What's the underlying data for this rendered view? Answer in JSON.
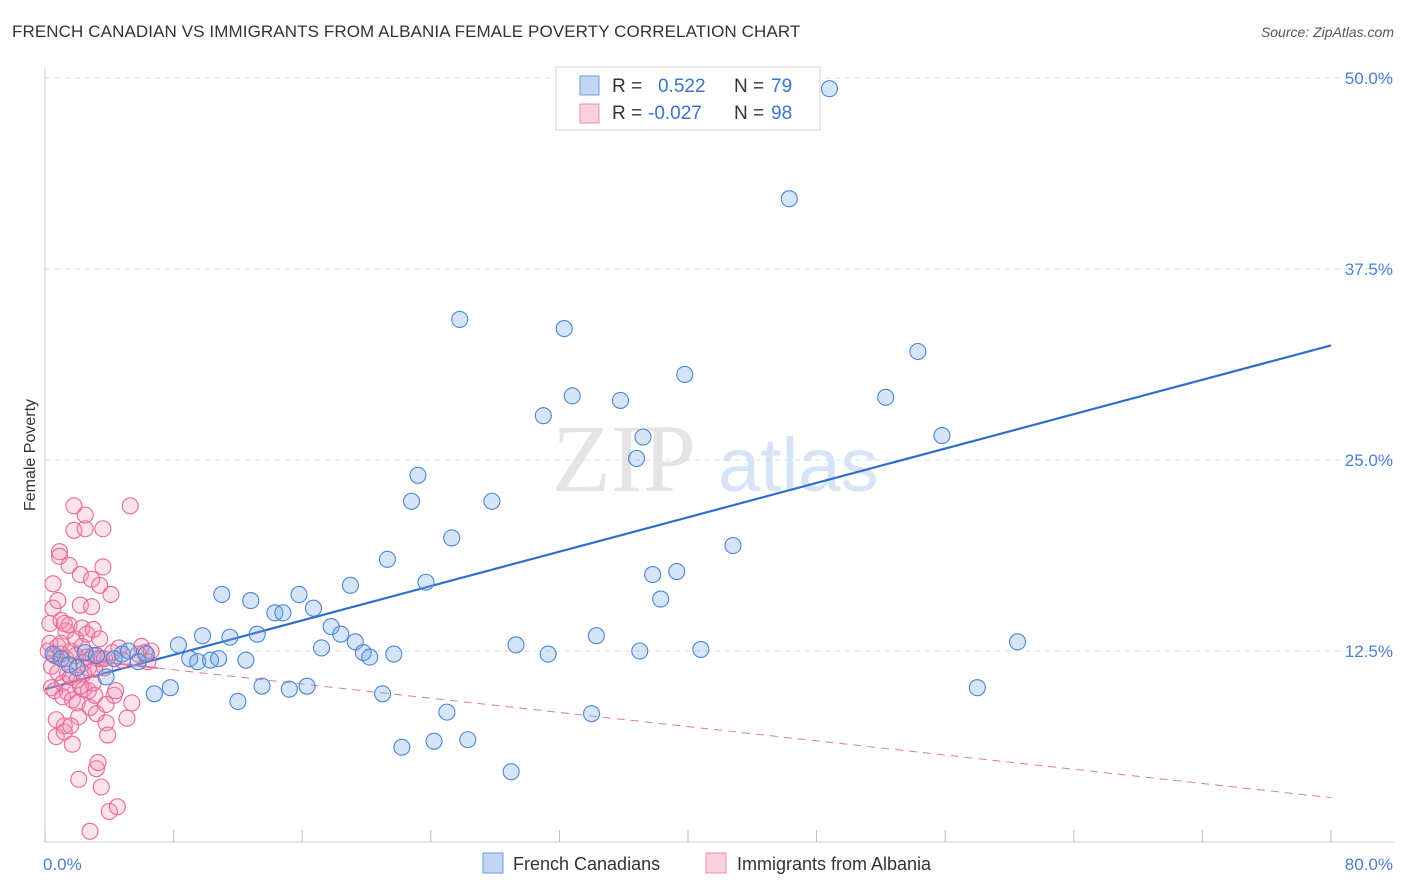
{
  "title": "FRENCH CANADIAN VS IMMIGRANTS FROM ALBANIA FEMALE POVERTY CORRELATION CHART",
  "source": "Source: ZipAtlas.com",
  "watermark": {
    "zip": "ZIP",
    "atlas": "atlas"
  },
  "colors": {
    "blue": "#4a87d6",
    "blue_fill": "rgba(120,165,230,0.30)",
    "blue_line": "#2f6fcc",
    "pink": "#e86a97",
    "pink_fill": "rgba(240,140,175,0.25)",
    "pink_line": "#e07aa0",
    "grid": "#dddddd",
    "tick": "#4a7fd4"
  },
  "chart_data": {
    "type": "scatter",
    "title": "FRENCH CANADIAN VS IMMIGRANTS FROM ALBANIA FEMALE POVERTY CORRELATION CHART",
    "xlabel": "",
    "ylabel": "Female Poverty",
    "xlim": [
      0,
      80
    ],
    "ylim": [
      0,
      50
    ],
    "y_ticks": [
      12.5,
      25.0,
      37.5,
      50.0
    ],
    "y_tick_labels": [
      "12.5%",
      "25.0%",
      "37.5%",
      "50.0%"
    ],
    "x_tick_labels": [
      "0.0%",
      "80.0%"
    ],
    "legend": {
      "r_label": "R =",
      "n_label": "N =",
      "entries": [
        {
          "r": "0.522",
          "n": "79"
        },
        {
          "r": "-0.027",
          "n": "98"
        }
      ]
    },
    "series": [
      {
        "name": "French Canadians",
        "trend": {
          "x": [
            0,
            80
          ],
          "y": [
            10.0,
            32.5
          ]
        },
        "points": [
          [
            0.5,
            12.3
          ],
          [
            1.0,
            12.0
          ],
          [
            1.5,
            11.6
          ],
          [
            2.0,
            11.4
          ],
          [
            2.5,
            12.4
          ],
          [
            3.2,
            12.2
          ],
          [
            3.8,
            10.8
          ],
          [
            4.3,
            12.0
          ],
          [
            4.8,
            12.3
          ],
          [
            5.2,
            12.5
          ],
          [
            5.8,
            11.8
          ],
          [
            6.3,
            12.3
          ],
          [
            6.8,
            9.7
          ],
          [
            7.8,
            10.1
          ],
          [
            8.3,
            12.9
          ],
          [
            9.0,
            12.0
          ],
          [
            9.5,
            11.8
          ],
          [
            9.8,
            13.5
          ],
          [
            10.3,
            11.9
          ],
          [
            10.8,
            12.0
          ],
          [
            11.0,
            16.2
          ],
          [
            11.5,
            13.4
          ],
          [
            12.0,
            9.2
          ],
          [
            12.5,
            11.9
          ],
          [
            12.8,
            15.8
          ],
          [
            13.2,
            13.6
          ],
          [
            13.5,
            10.2
          ],
          [
            14.3,
            15.0
          ],
          [
            14.8,
            15.0
          ],
          [
            15.2,
            10.0
          ],
          [
            15.8,
            16.2
          ],
          [
            16.3,
            10.2
          ],
          [
            16.7,
            15.3
          ],
          [
            17.2,
            12.7
          ],
          [
            17.8,
            14.1
          ],
          [
            18.4,
            13.6
          ],
          [
            19.0,
            16.8
          ],
          [
            19.3,
            13.1
          ],
          [
            19.8,
            12.4
          ],
          [
            20.2,
            12.1
          ],
          [
            21.0,
            9.7
          ],
          [
            21.3,
            18.5
          ],
          [
            21.7,
            12.3
          ],
          [
            22.2,
            6.2
          ],
          [
            22.8,
            22.3
          ],
          [
            23.2,
            24.0
          ],
          [
            23.7,
            17.0
          ],
          [
            24.2,
            6.6
          ],
          [
            25.0,
            8.5
          ],
          [
            25.3,
            19.9
          ],
          [
            25.8,
            34.2
          ],
          [
            26.3,
            6.7
          ],
          [
            27.8,
            22.3
          ],
          [
            29.0,
            4.6
          ],
          [
            29.3,
            12.9
          ],
          [
            31.0,
            27.9
          ],
          [
            31.3,
            12.3
          ],
          [
            32.3,
            33.6
          ],
          [
            32.8,
            29.2
          ],
          [
            34.0,
            8.4
          ],
          [
            34.3,
            13.5
          ],
          [
            35.8,
            28.9
          ],
          [
            36.8,
            25.1
          ],
          [
            37.0,
            12.5
          ],
          [
            37.2,
            26.5
          ],
          [
            37.8,
            17.5
          ],
          [
            38.3,
            15.9
          ],
          [
            39.3,
            17.7
          ],
          [
            39.8,
            30.6
          ],
          [
            40.8,
            12.6
          ],
          [
            42.8,
            19.4
          ],
          [
            46.3,
            42.1
          ],
          [
            48.8,
            49.3
          ],
          [
            52.3,
            29.1
          ],
          [
            54.3,
            32.1
          ],
          [
            55.8,
            26.6
          ],
          [
            58.0,
            10.1
          ],
          [
            60.5,
            13.1
          ]
        ]
      },
      {
        "name": "Immigrants from Albania",
        "trend": {
          "x": [
            0,
            80
          ],
          "y": [
            12.2,
            2.9
          ]
        },
        "points": [
          [
            0.2,
            12.5
          ],
          [
            0.3,
            13.0
          ],
          [
            0.3,
            14.3
          ],
          [
            0.4,
            11.5
          ],
          [
            0.4,
            10.1
          ],
          [
            0.5,
            16.9
          ],
          [
            0.5,
            15.3
          ],
          [
            0.6,
            12.2
          ],
          [
            0.6,
            9.9
          ],
          [
            0.7,
            8.0
          ],
          [
            0.7,
            6.9
          ],
          [
            0.8,
            12.8
          ],
          [
            0.8,
            11.1
          ],
          [
            0.9,
            19.0
          ],
          [
            0.9,
            18.7
          ],
          [
            1.0,
            14.5
          ],
          [
            1.0,
            12.3
          ],
          [
            1.1,
            10.4
          ],
          [
            1.1,
            9.5
          ],
          [
            1.2,
            7.6
          ],
          [
            1.2,
            7.2
          ],
          [
            1.3,
            13.8
          ],
          [
            1.3,
            12.0
          ],
          [
            1.4,
            11.0
          ],
          [
            1.4,
            9.8
          ],
          [
            1.5,
            18.1
          ],
          [
            1.5,
            14.2
          ],
          [
            1.6,
            12.5
          ],
          [
            1.6,
            10.8
          ],
          [
            1.7,
            9.3
          ],
          [
            1.7,
            6.4
          ],
          [
            1.8,
            22.0
          ],
          [
            1.8,
            20.4
          ],
          [
            1.9,
            13.3
          ],
          [
            1.9,
            12.2
          ],
          [
            2.0,
            10.6
          ],
          [
            2.0,
            9.1
          ],
          [
            2.1,
            8.2
          ],
          [
            2.1,
            4.1
          ],
          [
            2.2,
            17.5
          ],
          [
            2.2,
            15.5
          ],
          [
            2.3,
            14.0
          ],
          [
            2.3,
            12.8
          ],
          [
            2.4,
            11.7
          ],
          [
            2.4,
            10.0
          ],
          [
            2.5,
            21.4
          ],
          [
            2.5,
            20.5
          ],
          [
            2.6,
            13.6
          ],
          [
            2.6,
            12.1
          ],
          [
            2.7,
            11.4
          ],
          [
            2.7,
            9.9
          ],
          [
            2.8,
            8.8
          ],
          [
            2.8,
            0.7
          ],
          [
            2.9,
            17.2
          ],
          [
            2.9,
            15.4
          ],
          [
            3.0,
            13.9
          ],
          [
            3.0,
            12.2
          ],
          [
            3.1,
            11.3
          ],
          [
            3.1,
            9.6
          ],
          [
            3.2,
            8.4
          ],
          [
            3.2,
            4.8
          ],
          [
            3.3,
            12.0
          ],
          [
            3.3,
            5.2
          ],
          [
            3.4,
            16.8
          ],
          [
            3.4,
            13.3
          ],
          [
            3.5,
            12.0
          ],
          [
            3.5,
            3.6
          ],
          [
            3.6,
            18.0
          ],
          [
            3.6,
            20.5
          ],
          [
            3.7,
            12.0
          ],
          [
            3.7,
            11.4
          ],
          [
            3.8,
            9.0
          ],
          [
            3.8,
            7.8
          ],
          [
            3.9,
            7.0
          ],
          [
            4.0,
            2.0
          ],
          [
            4.1,
            16.2
          ],
          [
            4.2,
            12.4
          ],
          [
            4.3,
            9.6
          ],
          [
            4.4,
            9.9
          ],
          [
            4.5,
            2.3
          ],
          [
            4.6,
            12.7
          ],
          [
            4.8,
            11.9
          ],
          [
            5.1,
            8.1
          ],
          [
            5.4,
            9.1
          ],
          [
            5.8,
            12.3
          ],
          [
            6.0,
            12.8
          ],
          [
            6.2,
            12.4
          ],
          [
            6.4,
            11.8
          ],
          [
            6.6,
            12.5
          ],
          [
            5.3,
            22.0
          ],
          [
            1.2,
            14.3
          ],
          [
            1.6,
            7.6
          ],
          [
            2.4,
            11.0
          ],
          [
            3.0,
            10.4
          ],
          [
            0.8,
            15.8
          ],
          [
            1.0,
            13.0
          ],
          [
            2.2,
            10.2
          ]
        ]
      }
    ],
    "bottom_legend": [
      "French Canadians",
      "Immigrants from Albania"
    ]
  }
}
